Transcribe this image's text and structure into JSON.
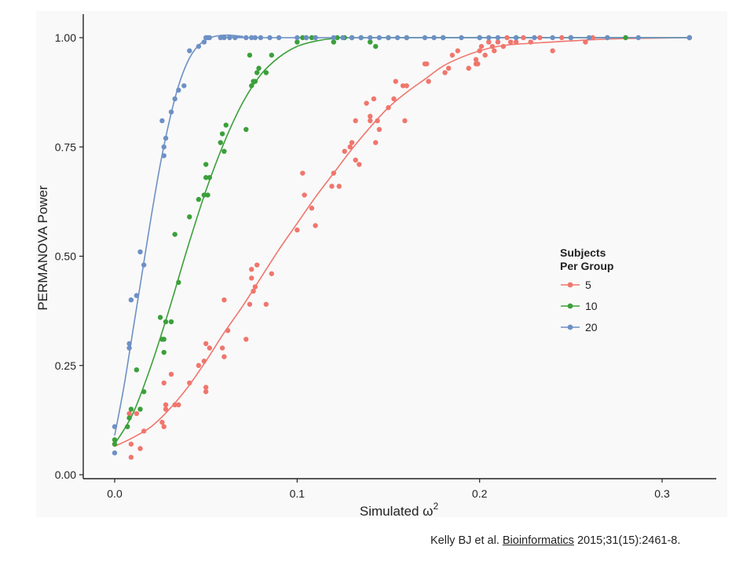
{
  "chart_data": {
    "type": "scatter",
    "xlabel": "Simulated ω",
    "xlabel_superscript": "2",
    "ylabel": "PERMANOVA Power",
    "xlim": [
      -0.015,
      0.33
    ],
    "ylim": [
      0,
      1.03
    ],
    "x_ticks": [
      0.0,
      0.1,
      0.2,
      0.3
    ],
    "x_tick_labels": [
      "0.0",
      "0.1",
      "0.2",
      "0.3"
    ],
    "y_ticks": [
      0.0,
      0.25,
      0.5,
      0.75,
      1.0
    ],
    "y_tick_labels": [
      "0.00",
      "0.25",
      "0.50",
      "0.75",
      "1.00"
    ],
    "grid": false,
    "legend": {
      "title_line1": "Subjects",
      "title_line2": "Per Group",
      "placement": "right"
    },
    "series": [
      {
        "name": "5",
        "color": "#f0766d",
        "points": [
          [
            0.0,
            0.07
          ],
          [
            0.008,
            0.14
          ],
          [
            0.009,
            0.07
          ],
          [
            0.009,
            0.04
          ],
          [
            0.012,
            0.14
          ],
          [
            0.014,
            0.06
          ],
          [
            0.016,
            0.1
          ],
          [
            0.026,
            0.12
          ],
          [
            0.027,
            0.11
          ],
          [
            0.027,
            0.21
          ],
          [
            0.028,
            0.15
          ],
          [
            0.028,
            0.16
          ],
          [
            0.031,
            0.23
          ],
          [
            0.033,
            0.16
          ],
          [
            0.035,
            0.16
          ],
          [
            0.041,
            0.21
          ],
          [
            0.046,
            0.25
          ],
          [
            0.049,
            0.26
          ],
          [
            0.05,
            0.3
          ],
          [
            0.05,
            0.2
          ],
          [
            0.05,
            0.19
          ],
          [
            0.052,
            0.29
          ],
          [
            0.059,
            0.29
          ],
          [
            0.06,
            0.4
          ],
          [
            0.06,
            0.27
          ],
          [
            0.062,
            0.33
          ],
          [
            0.072,
            0.31
          ],
          [
            0.074,
            0.39
          ],
          [
            0.075,
            0.45
          ],
          [
            0.075,
            0.47
          ],
          [
            0.076,
            0.42
          ],
          [
            0.077,
            0.43
          ],
          [
            0.078,
            0.48
          ],
          [
            0.083,
            0.39
          ],
          [
            0.086,
            0.46
          ],
          [
            0.1,
            0.56
          ],
          [
            0.103,
            0.69
          ],
          [
            0.104,
            0.64
          ],
          [
            0.108,
            0.61
          ],
          [
            0.11,
            0.57
          ],
          [
            0.119,
            0.66
          ],
          [
            0.12,
            0.69
          ],
          [
            0.123,
            0.66
          ],
          [
            0.126,
            0.74
          ],
          [
            0.129,
            0.75
          ],
          [
            0.13,
            0.76
          ],
          [
            0.132,
            0.72
          ],
          [
            0.132,
            0.81
          ],
          [
            0.134,
            0.71
          ],
          [
            0.138,
            0.85
          ],
          [
            0.14,
            0.82
          ],
          [
            0.14,
            0.81
          ],
          [
            0.142,
            0.86
          ],
          [
            0.143,
            0.76
          ],
          [
            0.144,
            0.81
          ],
          [
            0.145,
            0.79
          ],
          [
            0.15,
            0.84
          ],
          [
            0.153,
            0.86
          ],
          [
            0.154,
            0.9
          ],
          [
            0.158,
            0.89
          ],
          [
            0.159,
            0.81
          ],
          [
            0.16,
            0.89
          ],
          [
            0.17,
            0.94
          ],
          [
            0.171,
            0.94
          ],
          [
            0.172,
            0.9
          ],
          [
            0.181,
            0.92
          ],
          [
            0.183,
            0.93
          ],
          [
            0.185,
            0.96
          ],
          [
            0.188,
            0.97
          ],
          [
            0.194,
            0.93
          ],
          [
            0.198,
            0.95
          ],
          [
            0.198,
            0.94
          ],
          [
            0.199,
            0.94
          ],
          [
            0.2,
            0.97
          ],
          [
            0.201,
            0.98
          ],
          [
            0.203,
            0.96
          ],
          [
            0.205,
            0.99
          ],
          [
            0.207,
            0.98
          ],
          [
            0.208,
            0.97
          ],
          [
            0.21,
            0.99
          ],
          [
            0.213,
            0.98
          ],
          [
            0.215,
            1.0
          ],
          [
            0.217,
            0.99
          ],
          [
            0.22,
            0.99
          ],
          [
            0.224,
            1.0
          ],
          [
            0.228,
            0.99
          ],
          [
            0.233,
            1.0
          ],
          [
            0.24,
            0.97
          ],
          [
            0.245,
            1.0
          ],
          [
            0.25,
            1.0
          ],
          [
            0.258,
            0.99
          ],
          [
            0.262,
            1.0
          ],
          [
            0.27,
            1.0
          ],
          [
            0.28,
            1.0
          ],
          [
            0.315,
            1.0
          ]
        ],
        "curve": [
          [
            0.0,
            0.065
          ],
          [
            0.01,
            0.085
          ],
          [
            0.02,
            0.11
          ],
          [
            0.03,
            0.15
          ],
          [
            0.04,
            0.2
          ],
          [
            0.05,
            0.26
          ],
          [
            0.06,
            0.325
          ],
          [
            0.07,
            0.385
          ],
          [
            0.08,
            0.45
          ],
          [
            0.09,
            0.515
          ],
          [
            0.1,
            0.575
          ],
          [
            0.11,
            0.635
          ],
          [
            0.12,
            0.69
          ],
          [
            0.13,
            0.745
          ],
          [
            0.14,
            0.795
          ],
          [
            0.15,
            0.84
          ],
          [
            0.16,
            0.875
          ],
          [
            0.17,
            0.905
          ],
          [
            0.18,
            0.935
          ],
          [
            0.19,
            0.955
          ],
          [
            0.2,
            0.97
          ],
          [
            0.21,
            0.98
          ],
          [
            0.22,
            0.985
          ],
          [
            0.24,
            0.99
          ],
          [
            0.26,
            0.995
          ],
          [
            0.28,
            0.998
          ],
          [
            0.315,
            1.0
          ]
        ]
      },
      {
        "name": "10",
        "color": "#3ba03a",
        "points": [
          [
            0.0,
            0.07
          ],
          [
            0.0,
            0.08
          ],
          [
            0.007,
            0.11
          ],
          [
            0.008,
            0.13
          ],
          [
            0.009,
            0.15
          ],
          [
            0.012,
            0.24
          ],
          [
            0.014,
            0.15
          ],
          [
            0.016,
            0.19
          ],
          [
            0.025,
            0.36
          ],
          [
            0.026,
            0.31
          ],
          [
            0.027,
            0.31
          ],
          [
            0.027,
            0.28
          ],
          [
            0.028,
            0.35
          ],
          [
            0.031,
            0.35
          ],
          [
            0.033,
            0.55
          ],
          [
            0.035,
            0.44
          ],
          [
            0.041,
            0.59
          ],
          [
            0.046,
            0.63
          ],
          [
            0.049,
            0.64
          ],
          [
            0.05,
            0.71
          ],
          [
            0.05,
            0.68
          ],
          [
            0.051,
            0.64
          ],
          [
            0.052,
            0.68
          ],
          [
            0.058,
            0.76
          ],
          [
            0.059,
            0.78
          ],
          [
            0.06,
            0.74
          ],
          [
            0.061,
            0.8
          ],
          [
            0.072,
            0.79
          ],
          [
            0.074,
            0.96
          ],
          [
            0.075,
            0.89
          ],
          [
            0.076,
            0.9
          ],
          [
            0.077,
            0.9
          ],
          [
            0.078,
            0.92
          ],
          [
            0.079,
            0.93
          ],
          [
            0.083,
            0.92
          ],
          [
            0.086,
            0.96
          ],
          [
            0.1,
            0.99
          ],
          [
            0.103,
            1.0
          ],
          [
            0.105,
            1.0
          ],
          [
            0.108,
            1.0
          ],
          [
            0.11,
            1.0
          ],
          [
            0.12,
            0.99
          ],
          [
            0.122,
            1.0
          ],
          [
            0.126,
            1.0
          ],
          [
            0.13,
            1.0
          ],
          [
            0.135,
            1.0
          ],
          [
            0.14,
            0.99
          ],
          [
            0.143,
            0.98
          ],
          [
            0.15,
            1.0
          ],
          [
            0.16,
            1.0
          ],
          [
            0.18,
            1.0
          ],
          [
            0.2,
            1.0
          ],
          [
            0.22,
            1.0
          ],
          [
            0.25,
            1.0
          ],
          [
            0.28,
            1.0
          ],
          [
            0.315,
            1.0
          ]
        ],
        "curve": [
          [
            0.0,
            0.07
          ],
          [
            0.01,
            0.14
          ],
          [
            0.02,
            0.25
          ],
          [
            0.03,
            0.38
          ],
          [
            0.04,
            0.52
          ],
          [
            0.05,
            0.65
          ],
          [
            0.06,
            0.76
          ],
          [
            0.07,
            0.85
          ],
          [
            0.08,
            0.915
          ],
          [
            0.09,
            0.955
          ],
          [
            0.1,
            0.98
          ],
          [
            0.11,
            0.992
          ],
          [
            0.12,
            0.998
          ],
          [
            0.14,
            1.0
          ],
          [
            0.315,
            1.0
          ]
        ]
      },
      {
        "name": "20",
        "color": "#6d90c5",
        "points": [
          [
            0.0,
            0.05
          ],
          [
            0.0,
            0.11
          ],
          [
            0.008,
            0.29
          ],
          [
            0.008,
            0.3
          ],
          [
            0.009,
            0.4
          ],
          [
            0.012,
            0.41
          ],
          [
            0.014,
            0.51
          ],
          [
            0.016,
            0.48
          ],
          [
            0.026,
            0.81
          ],
          [
            0.027,
            0.75
          ],
          [
            0.027,
            0.73
          ],
          [
            0.028,
            0.77
          ],
          [
            0.031,
            0.83
          ],
          [
            0.033,
            0.86
          ],
          [
            0.035,
            0.88
          ],
          [
            0.038,
            0.89
          ],
          [
            0.041,
            0.97
          ],
          [
            0.046,
            0.98
          ],
          [
            0.049,
            0.99
          ],
          [
            0.05,
            1.0
          ],
          [
            0.051,
            1.0
          ],
          [
            0.052,
            1.0
          ],
          [
            0.058,
            1.0
          ],
          [
            0.06,
            1.0
          ],
          [
            0.063,
            1.0
          ],
          [
            0.066,
            1.0
          ],
          [
            0.072,
            1.0
          ],
          [
            0.075,
            1.0
          ],
          [
            0.077,
            1.0
          ],
          [
            0.08,
            1.0
          ],
          [
            0.085,
            1.0
          ],
          [
            0.09,
            1.0
          ],
          [
            0.1,
            1.0
          ],
          [
            0.105,
            1.0
          ],
          [
            0.11,
            1.0
          ],
          [
            0.12,
            1.0
          ],
          [
            0.125,
            1.0
          ],
          [
            0.13,
            1.0
          ],
          [
            0.135,
            1.0
          ],
          [
            0.14,
            1.0
          ],
          [
            0.145,
            1.0
          ],
          [
            0.15,
            1.0
          ],
          [
            0.155,
            1.0
          ],
          [
            0.16,
            1.0
          ],
          [
            0.17,
            1.0
          ],
          [
            0.175,
            1.0
          ],
          [
            0.18,
            1.0
          ],
          [
            0.19,
            1.0
          ],
          [
            0.2,
            1.0
          ],
          [
            0.205,
            1.0
          ],
          [
            0.21,
            1.0
          ],
          [
            0.22,
            1.0
          ],
          [
            0.23,
            1.0
          ],
          [
            0.24,
            1.0
          ],
          [
            0.25,
            1.0
          ],
          [
            0.26,
            1.0
          ],
          [
            0.27,
            1.0
          ],
          [
            0.287,
            1.0
          ],
          [
            0.315,
            1.0
          ]
        ],
        "curve": [
          [
            0.0,
            0.09
          ],
          [
            0.005,
            0.2
          ],
          [
            0.01,
            0.33
          ],
          [
            0.015,
            0.46
          ],
          [
            0.02,
            0.59
          ],
          [
            0.025,
            0.71
          ],
          [
            0.03,
            0.81
          ],
          [
            0.035,
            0.89
          ],
          [
            0.04,
            0.945
          ],
          [
            0.045,
            0.978
          ],
          [
            0.05,
            0.995
          ],
          [
            0.055,
            1.003
          ],
          [
            0.062,
            1.006
          ],
          [
            0.07,
            1.003
          ],
          [
            0.08,
            1.0
          ],
          [
            0.315,
            1.0
          ]
        ]
      }
    ]
  },
  "citation": {
    "prefix": "Kelly BJ et al. ",
    "journal": "Bioinformatics",
    "suffix": " 2015;31(15):2461-8."
  }
}
